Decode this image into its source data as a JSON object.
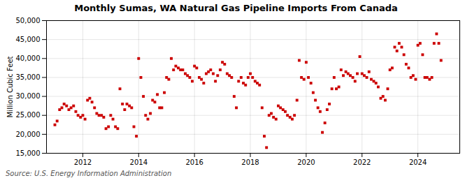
{
  "chart_data": {
    "type": "scatter",
    "title": "Monthly Sumas, WA Natural Gas Pipeline Imports From Canada",
    "ylabel": "Million Cubic Feet",
    "source": "Source: U.S. Energy Information Administration",
    "color": "#cc0000",
    "marker": "square",
    "grid": true,
    "xlim": [
      2010.7,
      2025.5
    ],
    "xticks": [
      2012,
      2014,
      2016,
      2018,
      2020,
      2022,
      2024
    ],
    "ylim": [
      15000,
      50000
    ],
    "yticks": [
      {
        "value": 15000,
        "label": "15,000"
      },
      {
        "value": 20000,
        "label": "20,000"
      },
      {
        "value": 25000,
        "label": "25,000"
      },
      {
        "value": 30000,
        "label": "30,000"
      },
      {
        "value": 35000,
        "label": "35,000"
      },
      {
        "value": 40000,
        "label": "40,000"
      },
      {
        "value": 45000,
        "label": "45,000"
      },
      {
        "value": 50000,
        "label": "50,000"
      }
    ],
    "x": [
      2011.0,
      2011.08,
      2011.17,
      2011.25,
      2011.33,
      2011.42,
      2011.5,
      2011.58,
      2011.67,
      2011.75,
      2011.83,
      2011.92,
      2012.0,
      2012.08,
      2012.17,
      2012.25,
      2012.33,
      2012.42,
      2012.5,
      2012.58,
      2012.67,
      2012.75,
      2012.83,
      2012.92,
      2013.0,
      2013.08,
      2013.17,
      2013.25,
      2013.33,
      2013.42,
      2013.5,
      2013.58,
      2013.67,
      2013.75,
      2013.83,
      2013.92,
      2014.0,
      2014.08,
      2014.17,
      2014.25,
      2014.33,
      2014.42,
      2014.5,
      2014.58,
      2014.67,
      2014.75,
      2014.83,
      2014.92,
      2015.0,
      2015.08,
      2015.17,
      2015.25,
      2015.33,
      2015.42,
      2015.5,
      2015.58,
      2015.67,
      2015.75,
      2015.83,
      2015.92,
      2016.0,
      2016.08,
      2016.17,
      2016.25,
      2016.33,
      2016.42,
      2016.5,
      2016.58,
      2016.67,
      2016.75,
      2016.83,
      2016.92,
      2017.0,
      2017.08,
      2017.17,
      2017.25,
      2017.33,
      2017.42,
      2017.5,
      2017.58,
      2017.67,
      2017.75,
      2017.83,
      2017.92,
      2018.0,
      2018.08,
      2018.17,
      2018.25,
      2018.33,
      2018.42,
      2018.5,
      2018.58,
      2018.67,
      2018.75,
      2018.83,
      2018.92,
      2019.0,
      2019.08,
      2019.17,
      2019.25,
      2019.33,
      2019.42,
      2019.5,
      2019.58,
      2019.67,
      2019.75,
      2019.83,
      2019.92,
      2020.0,
      2020.08,
      2020.17,
      2020.25,
      2020.33,
      2020.42,
      2020.5,
      2020.58,
      2020.67,
      2020.75,
      2020.83,
      2020.92,
      2021.0,
      2021.08,
      2021.17,
      2021.25,
      2021.33,
      2021.42,
      2021.5,
      2021.58,
      2021.67,
      2021.75,
      2021.83,
      2021.92,
      2022.0,
      2022.08,
      2022.17,
      2022.25,
      2022.33,
      2022.42,
      2022.5,
      2022.58,
      2022.67,
      2022.75,
      2022.83,
      2022.92,
      2023.0,
      2023.08,
      2023.17,
      2023.25,
      2023.33,
      2023.42,
      2023.5,
      2023.58,
      2023.67,
      2023.75,
      2023.83,
      2023.92,
      2024.0,
      2024.08,
      2024.17,
      2024.25,
      2024.33,
      2024.42,
      2024.5,
      2024.58,
      2024.67,
      2024.75,
      2024.83
    ],
    "values": [
      22500,
      23500,
      26500,
      27000,
      28000,
      27500,
      26500,
      27000,
      27500,
      26000,
      25000,
      24500,
      25000,
      24000,
      29000,
      29500,
      28500,
      27000,
      25500,
      25000,
      25000,
      24500,
      21500,
      22000,
      25000,
      24000,
      22000,
      21500,
      32000,
      28000,
      26500,
      28000,
      27500,
      27000,
      22000,
      19500,
      40000,
      35000,
      30000,
      25000,
      24000,
      25500,
      29000,
      28500,
      30500,
      27000,
      27000,
      31000,
      35000,
      34500,
      40000,
      37000,
      38000,
      37500,
      37000,
      37000,
      36000,
      35500,
      35000,
      34000,
      38000,
      37500,
      35000,
      34500,
      33500,
      36000,
      36500,
      37000,
      36000,
      34000,
      35500,
      37000,
      39000,
      38500,
      36000,
      35500,
      35000,
      30000,
      27000,
      34000,
      35000,
      33500,
      33000,
      35000,
      36000,
      35000,
      34000,
      33500,
      33000,
      27000,
      19500,
      16500,
      25000,
      25500,
      24500,
      24000,
      27500,
      27000,
      26500,
      26000,
      25000,
      24500,
      24000,
      25000,
      29000,
      39500,
      35000,
      34500,
      39000,
      35000,
      33500,
      31000,
      29000,
      27000,
      26000,
      20500,
      23000,
      26500,
      28000,
      32000,
      35000,
      32000,
      32500,
      37000,
      35500,
      36500,
      36000,
      35500,
      35000,
      34000,
      36000,
      40500,
      36000,
      35500,
      35000,
      36500,
      34500,
      34000,
      33500,
      32500,
      29500,
      30000,
      29000,
      32000,
      37000,
      37500,
      43000,
      42000,
      44000,
      43000,
      41000,
      38500,
      37500,
      35000,
      35500,
      34500,
      43500,
      44000,
      41000,
      35000,
      35000,
      34500,
      35000,
      44000,
      46500,
      44000,
      39500
    ]
  }
}
